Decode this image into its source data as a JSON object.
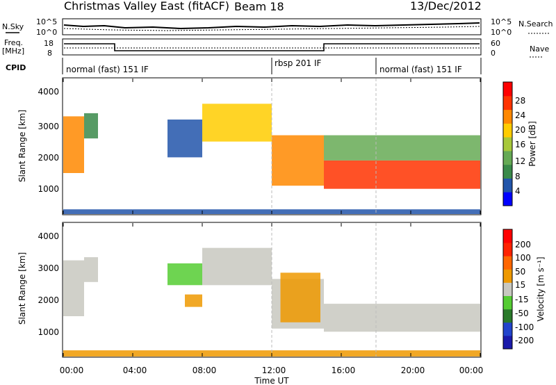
{
  "header": {
    "title": "Christmas Valley East (fitACF)",
    "beam": "Beam 18",
    "date": "13/Dec/2012"
  },
  "nsky_panel": {
    "left_label": "N.Sky",
    "left_ticks": [
      "10^5",
      "10^0"
    ],
    "right_ticks": [
      "10^5",
      "10^0"
    ],
    "right_label": "N.Search"
  },
  "freq_panel": {
    "left_label_1": "Freq.",
    "left_label_2": "[MHz]",
    "left_ticks": [
      "18",
      "8"
    ],
    "right_ticks": [
      "60",
      "0"
    ],
    "right_label": "Nave"
  },
  "cpid_panel": {
    "label": "CPID",
    "segments": [
      "normal (fast) 151 IF",
      "rbsp 201 IF",
      "normal (fast) 151 IF"
    ]
  },
  "power_panel": {
    "ylabel": "Slant Range [km]",
    "yticks": [
      "4000",
      "3000",
      "2000",
      "1000"
    ],
    "colorbar_label": "Power [dB]",
    "colorbar_ticks": [
      "28",
      "24",
      "20",
      "16",
      "12",
      "8",
      "4"
    ]
  },
  "velocity_panel": {
    "ylabel": "Slant Range [km]",
    "yticks": [
      "4000",
      "3000",
      "2000",
      "1000"
    ],
    "colorbar_label": "Velocity [m s⁻¹]",
    "colorbar_ticks": [
      "200",
      "100",
      "50",
      "15",
      "-15",
      "-50",
      "-100",
      "-200"
    ]
  },
  "xaxis": {
    "label": "Time UT",
    "ticks": [
      "00:00",
      "04:00",
      "08:00",
      "12:00",
      "16:00",
      "20:00",
      "00:00"
    ]
  },
  "colors": {
    "power_scale": [
      "#0000ff",
      "#2255aa",
      "#3a8a4a",
      "#66aa55",
      "#a8c83a",
      "#ffcc00",
      "#ff8800",
      "#ff3300",
      "#ff0000"
    ],
    "velocity_scale": [
      "#1a1aaa",
      "#2244cc",
      "#2a7a2a",
      "#55cc33",
      "#c8c8c0",
      "#ee9900",
      "#ff6600",
      "#ff2200",
      "#ff0000"
    ]
  },
  "chart_data": [
    {
      "type": "heatmap",
      "title": "Power",
      "xlabel": "Time UT",
      "ylabel": "Slant Range [km]",
      "xlim": [
        0,
        24
      ],
      "ylim": [
        200,
        4500
      ],
      "zlim": [
        0,
        32
      ],
      "zlabel": "Power [dB]",
      "regions": [
        {
          "t": [
            0.0,
            1.2
          ],
          "r": [
            1500,
            3300
          ],
          "z": 22
        },
        {
          "t": [
            1.2,
            2.0
          ],
          "r": [
            2600,
            3400
          ],
          "z": 10
        },
        {
          "t": [
            6.0,
            8.0
          ],
          "r": [
            2000,
            3200
          ],
          "z": 6
        },
        {
          "t": [
            8.0,
            12.0
          ],
          "r": [
            2500,
            3700
          ],
          "z": 18
        },
        {
          "t": [
            12.0,
            15.0
          ],
          "r": [
            1100,
            2700
          ],
          "z": 24
        },
        {
          "t": [
            15.0,
            24.0
          ],
          "r": [
            1000,
            1900
          ],
          "z": 28
        },
        {
          "t": [
            15.0,
            24.0
          ],
          "r": [
            1900,
            2700
          ],
          "z": 12
        },
        {
          "t": [
            0.0,
            24.0
          ],
          "r": [
            200,
            350
          ],
          "z": 6
        }
      ]
    },
    {
      "type": "heatmap",
      "title": "Velocity",
      "xlabel": "Time UT",
      "ylabel": "Slant Range [km]",
      "xlim": [
        0,
        24
      ],
      "ylim": [
        200,
        4500
      ],
      "zlim": [
        -250,
        250
      ],
      "zlabel": "Velocity [m s⁻¹]",
      "regions": [
        {
          "t": [
            0.0,
            1.2
          ],
          "r": [
            1500,
            3300
          ],
          "z": 0
        },
        {
          "t": [
            1.2,
            2.0
          ],
          "r": [
            2600,
            3400
          ],
          "z": 0
        },
        {
          "t": [
            6.0,
            8.0
          ],
          "r": [
            2500,
            3200
          ],
          "z": -60
        },
        {
          "t": [
            7.0,
            8.0
          ],
          "r": [
            1800,
            2200
          ],
          "z": 60
        },
        {
          "t": [
            8.0,
            12.0
          ],
          "r": [
            2500,
            3700
          ],
          "z": 0
        },
        {
          "t": [
            12.0,
            15.0
          ],
          "r": [
            1100,
            2700
          ],
          "z": 0
        },
        {
          "t": [
            12.5,
            14.8
          ],
          "r": [
            1300,
            2900
          ],
          "z": 40
        },
        {
          "t": [
            15.0,
            24.0
          ],
          "r": [
            1000,
            1900
          ],
          "z": 0
        },
        {
          "t": [
            0.0,
            24.0
          ],
          "r": [
            200,
            400
          ],
          "z": 30
        }
      ]
    }
  ]
}
